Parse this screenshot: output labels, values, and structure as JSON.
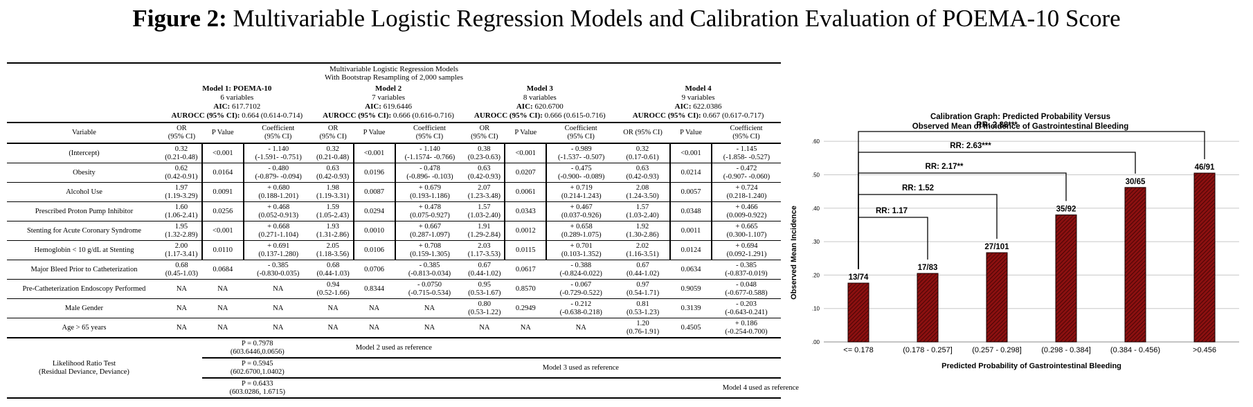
{
  "figure": {
    "label": "Figure 2:",
    "title": "Multivariable Logistic Regression Models and Calibration Evaluation of POEMA-10 Score"
  },
  "table": {
    "caption_line1": "Multivariable Logistic Regression Models",
    "caption_line2": "With Bootstrap Resampling of 2,000 samples",
    "models": [
      {
        "name": "Model 1: POEMA-10",
        "vars": "6 variables",
        "aic_label": "AIC:",
        "aic": "617.7102",
        "auc_label": "AUROCC (95% CI):",
        "auc": "0.664 (0.614-0.714)"
      },
      {
        "name": "Model 2",
        "vars": "7 variables",
        "aic_label": "AIC:",
        "aic": "619.6446",
        "auc_label": "AUROCC (95% CI):",
        "auc": "0.666 (0.616-0.716)"
      },
      {
        "name": "Model 3",
        "vars": "8 variables",
        "aic_label": "AIC:",
        "aic": "620.6700",
        "auc_label": "AUROCC (95% CI):",
        "auc": "0.666 (0.615-0.716)"
      },
      {
        "name": "Model 4",
        "vars": "9 variables",
        "aic_label": "AIC:",
        "aic": "622.0386",
        "auc_label": "AUROCC (95% CI):",
        "auc": "0.667 (0.617-0.717)"
      }
    ],
    "headers": {
      "variable": "Variable",
      "or1": "OR",
      "or2": "(95% CI)",
      "or_single": "OR (95% CI)",
      "p": "P Value",
      "coef1": "Coefficient",
      "coef2": "(95% CI)"
    },
    "rows": [
      {
        "variable": "(Intercept)",
        "cells": [
          {
            "or": "0.32",
            "or_ci": "(0.21-0.48)",
            "p": "<0.001",
            "coef": "- 1.140",
            "coef_ci": "(-1.591- -0.751)"
          },
          {
            "or": "0.32",
            "or_ci": "(0.21-0.48)",
            "p": "<0.001",
            "coef": "- 1.140",
            "coef_ci": "(-1.1574- -0.766)"
          },
          {
            "or": "0.38",
            "or_ci": "(0.23-0.63)",
            "p": "<0.001",
            "coef": "- 0.989",
            "coef_ci": "(-1.537- -0.507)"
          },
          {
            "or": "0.32",
            "or_ci": "(0.17-0.61)",
            "p": "<0.001",
            "coef": "- 1.145",
            "coef_ci": "(-1.858- -0.527)"
          }
        ]
      },
      {
        "variable": "Obesity",
        "cells": [
          {
            "or": "0.62",
            "or_ci": "(0.42-0.91)",
            "p": "0.0164",
            "coef": "- 0.480",
            "coef_ci": "(-0.879- -0.094)"
          },
          {
            "or": "0.63",
            "or_ci": "(0.42-0.93)",
            "p": "0.0196",
            "coef": "- 0.478",
            "coef_ci": "(-0.896- -0.103)"
          },
          {
            "or": "0.63",
            "or_ci": "(0.42-0.93)",
            "p": "0.0207",
            "coef": "- 0.475",
            "coef_ci": "(-0.900- -0.089)"
          },
          {
            "or": "0.63",
            "or_ci": "(0.42-0.93)",
            "p": "0.0214",
            "coef": "- 0.472",
            "coef_ci": "(-0.907- -0.060)"
          }
        ]
      },
      {
        "variable": "Alcohol Use",
        "cells": [
          {
            "or": "1.97",
            "or_ci": "(1.19-3.29)",
            "p": "0.0091",
            "coef": "+ 0.680",
            "coef_ci": "(0.188-1.201)"
          },
          {
            "or": "1.98",
            "or_ci": "(1.19-3.31)",
            "p": "0.0087",
            "coef": "+ 0.679",
            "coef_ci": "(0.193-1.186)"
          },
          {
            "or": "2.07",
            "or_ci": "(1.23-3.48)",
            "p": "0.0061",
            "coef": "+ 0.719",
            "coef_ci": "(0.214-1.243)"
          },
          {
            "or": "2.08",
            "or_ci": "(1.24-3.50)",
            "p": "0.0057",
            "coef": "+ 0.724",
            "coef_ci": "(0.218-1.240)"
          }
        ]
      },
      {
        "variable": "Prescribed Proton Pump Inhibitor",
        "cells": [
          {
            "or": "1.60",
            "or_ci": "(1.06-2.41)",
            "p": "0.0256",
            "coef": "+ 0.468",
            "coef_ci": "(0.052-0.913)"
          },
          {
            "or": "1.59",
            "or_ci": "(1.05-2.43)",
            "p": "0.0294",
            "coef": "+ 0.478",
            "coef_ci": "(0.075-0.927)"
          },
          {
            "or": "1.57",
            "or_ci": "(1.03-2.40)",
            "p": "0.0343",
            "coef": "+ 0.467",
            "coef_ci": "(0.037-0.926)"
          },
          {
            "or": "1.57",
            "or_ci": "(1.03-2.40)",
            "p": "0.0348",
            "coef": "+ 0.466",
            "coef_ci": "(0.009-0.922)"
          }
        ]
      },
      {
        "variable": "Stenting for Acute Coronary Syndrome",
        "cells": [
          {
            "or": "1.95",
            "or_ci": "(1.32-2.89)",
            "p": "<0.001",
            "coef": "+ 0.668",
            "coef_ci": "(0.271-1.104)"
          },
          {
            "or": "1.93",
            "or_ci": "(1.31-2.86)",
            "p": "0.0010",
            "coef": "+ 0.667",
            "coef_ci": "(0.287-1.097)"
          },
          {
            "or": "1.91",
            "or_ci": "(1.29-2.84)",
            "p": "0.0012",
            "coef": "+ 0.658",
            "coef_ci": "(0.289-1.075)"
          },
          {
            "or": "1.92",
            "or_ci": "(1.30-2.86)",
            "p": "0.0011",
            "coef": "+ 0.665",
            "coef_ci": "(0.300-1.107)"
          }
        ]
      },
      {
        "variable": "Hemoglobin < 10 g/dL at Stenting",
        "cells": [
          {
            "or": "2.00",
            "or_ci": "(1.17-3.41)",
            "p": "0.0110",
            "coef": "+ 0.691",
            "coef_ci": "(0.137-1.280)"
          },
          {
            "or": "2.05",
            "or_ci": "(1.18-3.56)",
            "p": "0.0106",
            "coef": "+ 0.708",
            "coef_ci": "(0.159-1.305)"
          },
          {
            "or": "2.03",
            "or_ci": "(1.17-3.53)",
            "p": "0.0115",
            "coef": "+ 0.701",
            "coef_ci": "(0.103-1.352)"
          },
          {
            "or": "2.02",
            "or_ci": "(1.16-3.51)",
            "p": "0.0124",
            "coef": "+ 0.694",
            "coef_ci": "(0.092-1.291)"
          }
        ]
      },
      {
        "variable": "Major Bleed Prior to Catheterization",
        "cells": [
          {
            "or": "0.68",
            "or_ci": "(0.45-1.03)",
            "p": "0.0684",
            "coef": "- 0.385",
            "coef_ci": "(-0.830-0.035)"
          },
          {
            "or": "0.68",
            "or_ci": "(0.44-1.03)",
            "p": "0.0706",
            "coef": "- 0.385",
            "coef_ci": "(-0.813-0.034)"
          },
          {
            "or": "0.67",
            "or_ci": "(0.44-1.02)",
            "p": "0.0617",
            "coef": "- 0.388",
            "coef_ci": "(-0.824-0.022)"
          },
          {
            "or": "0.67",
            "or_ci": "(0.44-1.02)",
            "p": "0.0634",
            "coef": "- 0.385",
            "coef_ci": "(-0.837-0.019)"
          }
        ]
      },
      {
        "variable": "Pre-Catheterization Endoscopy Performed",
        "cells": [
          {
            "or": "NA",
            "or_ci": "",
            "p": "NA",
            "coef": "NA",
            "coef_ci": ""
          },
          {
            "or": "0.94",
            "or_ci": "(0.52-1.66)",
            "p": "0.8344",
            "coef": "- 0.0750",
            "coef_ci": "(-0.715-0.534)"
          },
          {
            "or": "0.95",
            "or_ci": "(0.53-1.67)",
            "p": "0.8570",
            "coef": "- 0.067",
            "coef_ci": "(-0.729-0.522)"
          },
          {
            "or": "0.97",
            "or_ci": "(0.54-1.71)",
            "p": "0.9059",
            "coef": "- 0.048",
            "coef_ci": "(-0.677-0.588)"
          }
        ]
      },
      {
        "variable": "Male Gender",
        "cells": [
          {
            "or": "NA",
            "or_ci": "",
            "p": "NA",
            "coef": "NA",
            "coef_ci": ""
          },
          {
            "or": "NA",
            "or_ci": "",
            "p": "NA",
            "coef": "NA",
            "coef_ci": ""
          },
          {
            "or": "0.80",
            "or_ci": "(0.53-1.22)",
            "p": "0.2949",
            "coef": "- 0.212",
            "coef_ci": "(-0.638-0.218)"
          },
          {
            "or": "0.81",
            "or_ci": "(0.53-1.23)",
            "p": "0.3139",
            "coef": "- 0.203",
            "coef_ci": "(-0.643-0.241)"
          }
        ]
      },
      {
        "variable": "Age > 65 years",
        "cells": [
          {
            "or": "NA",
            "or_ci": "",
            "p": "NA",
            "coef": "NA",
            "coef_ci": ""
          },
          {
            "or": "NA",
            "or_ci": "",
            "p": "NA",
            "coef": "NA",
            "coef_ci": ""
          },
          {
            "or": "NA",
            "or_ci": "",
            "p": "NA",
            "coef": "NA",
            "coef_ci": ""
          },
          {
            "or": "1.20",
            "or_ci": "(0.76-1.91)",
            "p": "0.4505",
            "coef": "+ 0.186",
            "coef_ci": "(-0.254-0.700)"
          }
        ]
      }
    ],
    "lr_test": {
      "label1": "Likelihood Ratio Test",
      "label2": "(Residual Deviance, Deviance)",
      "rows": [
        {
          "p": "P = 0.7978",
          "vals": "(603.6446,0.0656)",
          "ref": "Model 2 used as reference"
        },
        {
          "p": "P = 0.5945",
          "vals": "(602.6700,1.0402)",
          "ref": "Model 3 used as reference"
        },
        {
          "p": "P = 0.6433",
          "vals": "(603.0286, 1.6715)",
          "ref": "Model 4 used as reference"
        }
      ]
    }
  },
  "chart_data": {
    "type": "bar",
    "title": "Calibration Graph: Predicted Probability Versus",
    "subtitle": "Observed Mean of Incidence of Gastrointestinal Bleeding",
    "xlabel": "Predicted Probability of Gastrointestinal Bleeding",
    "ylabel": "Observed Mean Incidence",
    "categories": [
      "<= 0.178",
      "(0.178 - 0.257]",
      "(0.257 - 0.298]",
      "(0.298 - 0.384]",
      "(0.384 - 0.456)",
      ">0.456"
    ],
    "values": [
      0.176,
      0.205,
      0.267,
      0.38,
      0.462,
      0.505
    ],
    "data_labels": [
      "13/74",
      "17/83",
      "27/101",
      "35/92",
      "30/65",
      "46/91"
    ],
    "ylim": [
      0,
      0.65
    ],
    "yticks": [
      ".00",
      ".10",
      ".20",
      ".30",
      ".40",
      ".50",
      ".60"
    ],
    "grid": true,
    "bar_color": "#8b1010",
    "annotations": [
      {
        "text": "RR: 1.17",
        "to_category": 1
      },
      {
        "text": "RR: 1.52",
        "to_category": 2
      },
      {
        "text": "RR: 2.17**",
        "to_category": 3
      },
      {
        "text": "RR: 2.63***",
        "to_category": 4
      },
      {
        "text": "RR: 2.88***",
        "to_category": 5
      }
    ]
  }
}
